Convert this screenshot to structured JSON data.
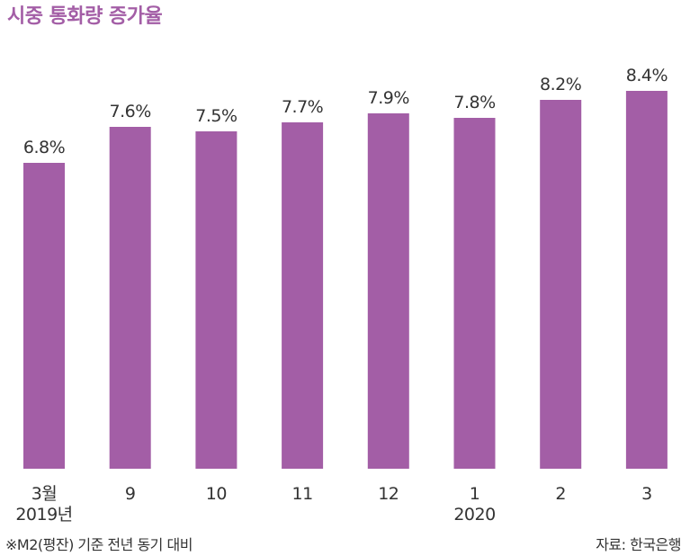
{
  "chart_data": {
    "type": "bar",
    "title": "시중 통화량 증가율",
    "categories": [
      "3월|2019년",
      "9",
      "10",
      "11",
      "12",
      "1|2020",
      "2",
      "3"
    ],
    "values": [
      6.8,
      7.6,
      7.5,
      7.7,
      7.9,
      7.8,
      8.2,
      8.4
    ],
    "value_labels": [
      "6.8%",
      "7.6%",
      "7.5%",
      "7.7%",
      "7.9%",
      "7.8%",
      "8.2%",
      "8.4%"
    ],
    "xlabel": "",
    "ylabel": "",
    "ylim": [
      0,
      10
    ],
    "grid": false,
    "legend": "none",
    "bar_color": "#a35ea6"
  },
  "footnote": "※M2(평잔) 기준 전년 동기 대비",
  "source": "자료: 한국은행",
  "colors": {
    "accent": "#a35ea6",
    "text": "#333333"
  }
}
